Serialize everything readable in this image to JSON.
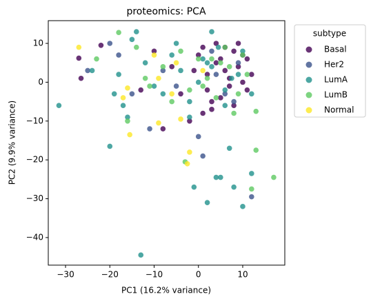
{
  "chart_data": {
    "type": "scatter",
    "title": "proteomics: PCA",
    "x_label": "PC1 (16.2% variance)",
    "y_label": "PC2 (9.9% variance)",
    "legend_title": "subtype",
    "legend_position": "outside right",
    "xlim": [
      -33.9,
      19.5
    ],
    "ylim": [
      -47.1,
      15.85
    ],
    "xticks": [
      {
        "value": -30,
        "label": "−30"
      },
      {
        "value": -20,
        "label": "−20"
      },
      {
        "value": -10,
        "label": "−10"
      },
      0,
      10
    ],
    "yticks": [
      {
        "value": -40,
        "label": "−40"
      },
      {
        "value": -30,
        "label": "−30"
      },
      {
        "value": -20,
        "label": "−20"
      },
      {
        "value": -10,
        "label": "−10"
      },
      0,
      10
    ],
    "series": [
      {
        "name": "Basal",
        "color": "#440154",
        "x": [
          -27,
          -22,
          -26.5,
          -13,
          -10,
          -6,
          -4,
          -2,
          0,
          1,
          2,
          3,
          4,
          5,
          6,
          7,
          8,
          9,
          10,
          11,
          12,
          2,
          4,
          6,
          8,
          10,
          -1,
          3,
          7,
          9,
          5,
          -8,
          1,
          11
        ],
        "values": [
          6.2,
          9.5,
          1,
          -2,
          8,
          4,
          -3,
          -10,
          7,
          9,
          2,
          -5,
          10,
          6,
          3,
          -1,
          8,
          4,
          0,
          6,
          2,
          -2,
          5,
          9,
          -6,
          7,
          3,
          -7,
          1,
          10,
          -4,
          -12,
          -8,
          -2
        ]
      },
      {
        "name": "Her2",
        "color": "#3b528b",
        "x": [
          -25,
          -18,
          -15,
          -11,
          -5,
          1,
          4,
          6,
          9,
          12,
          -8,
          3,
          8,
          -20,
          0
        ],
        "values": [
          3,
          7,
          -3,
          -12,
          -1,
          -19,
          2,
          -3,
          5,
          -29.5,
          3,
          8,
          -5,
          10,
          -14
        ]
      },
      {
        "name": "LumA",
        "color": "#21918c",
        "x": [
          -31.5,
          -24,
          -20,
          -19,
          -17,
          -16,
          -14,
          -12,
          -10,
          -8,
          -6,
          -4,
          -2,
          0,
          2,
          4,
          5,
          6,
          7,
          8,
          10,
          12,
          -1,
          2,
          3,
          4.5,
          7.5,
          10,
          12,
          -13,
          -18,
          -2,
          -5,
          1,
          6,
          9,
          -15,
          3
        ],
        "values": [
          -6,
          3,
          -16.5,
          -3,
          -6,
          -9,
          13,
          5,
          -1,
          -3,
          7,
          3,
          -5,
          0,
          5,
          -24.5,
          -24.5,
          -6,
          -17,
          -27,
          -32,
          -23.5,
          -27,
          -31,
          4,
          9,
          1,
          8,
          -3,
          -44.5,
          2,
          -9,
          10,
          6,
          -2,
          2,
          11,
          13
        ]
      },
      {
        "name": "LumB",
        "color": "#5ec962",
        "x": [
          -18,
          -23,
          -16,
          -12,
          -8,
          -4,
          -2,
          0,
          2,
          4,
          6,
          8,
          10,
          13,
          17,
          12,
          -3,
          13,
          -11,
          5,
          9,
          11,
          -6,
          1,
          7,
          3,
          -14
        ],
        "values": [
          12.8,
          6,
          -10,
          1,
          4,
          8,
          -2,
          6,
          1,
          -4,
          9,
          -8,
          7,
          -17.5,
          -24.5,
          -27.5,
          -20.5,
          -7.5,
          -1,
          5,
          -3,
          2,
          -5,
          -1,
          4,
          6,
          9
        ]
      },
      {
        "name": "Normal",
        "color": "#fde725",
        "x": [
          -27,
          -15.5,
          -16,
          -10,
          -9,
          -5,
          -2,
          -4,
          -2.5,
          -9,
          -6,
          1,
          -17
        ],
        "values": [
          9,
          -13.5,
          -1.5,
          7,
          -10.5,
          5,
          -18,
          -9.5,
          -21,
          1,
          -3,
          3,
          -4
        ]
      }
    ]
  }
}
